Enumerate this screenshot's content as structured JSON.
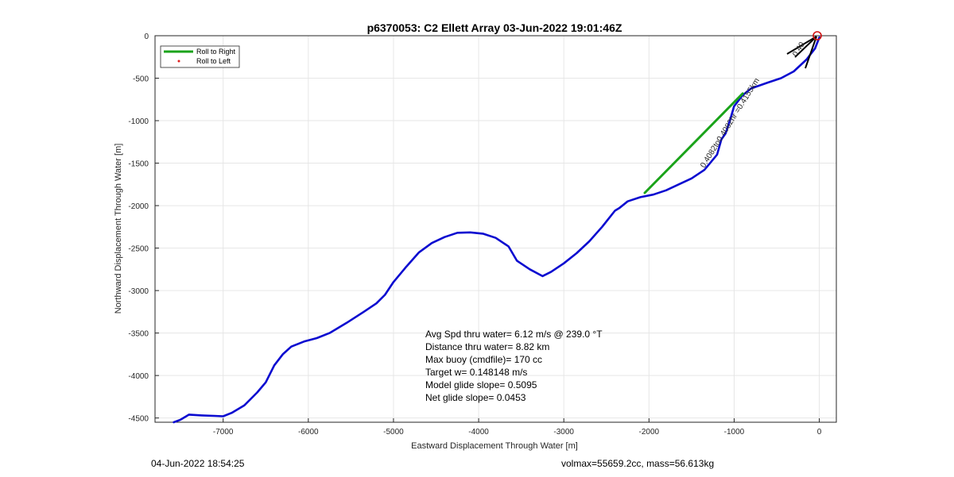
{
  "chart_data": {
    "type": "line",
    "title": "p6370053: C2 Ellett Array 03-Jun-2022 19:01:46Z",
    "xlabel": "Eastward Displacement Through Water [m]",
    "ylabel": "Northward Displacement Through Water [m]",
    "xlim": [
      -7800,
      200
    ],
    "ylim": [
      -4550,
      0
    ],
    "xticks": [
      -7000,
      -6000,
      -5000,
      -4000,
      -3000,
      -2000,
      -1000,
      0
    ],
    "yticks": [
      0,
      -500,
      -1000,
      -1500,
      -2000,
      -2500,
      -3000,
      -3500,
      -4000,
      -4500
    ],
    "grid": true,
    "legend": {
      "location": "top-left",
      "entries": [
        {
          "label": "Roll to Right",
          "color": "#1aa31a",
          "style": "line"
        },
        {
          "label": "Roll to Left",
          "color": "#e02020",
          "style": "dot"
        }
      ]
    },
    "series": [
      {
        "color": "#0a0ad0",
        "x": [
          0,
          -50,
          -150,
          -300,
          -450,
          -600,
          -800,
          -900,
          -1000,
          -1050,
          -1100,
          -1150,
          -1200,
          -1350,
          -1500,
          -1650,
          -1800,
          -1950,
          -2100,
          -2250,
          -2350,
          -2400,
          -2550,
          -2700,
          -2850,
          -3000,
          -3150,
          -3250,
          -3400,
          -3550,
          -3650,
          -3800,
          -3950,
          -4100,
          -4250,
          -4400,
          -4550,
          -4700,
          -4850,
          -5000,
          -5100,
          -5200,
          -5350,
          -5550,
          -5750,
          -5900,
          -6050,
          -6200,
          -6300,
          -6400,
          -6500,
          -6600,
          -6750,
          -6900,
          -7000,
          -7100,
          -7250,
          -7400,
          -7500,
          -7580
        ],
        "y": [
          -20,
          -150,
          -280,
          -420,
          -500,
          -550,
          -620,
          -700,
          -830,
          -1000,
          -1150,
          -1220,
          -1400,
          -1580,
          -1680,
          -1750,
          -1820,
          -1870,
          -1900,
          -1950,
          -2030,
          -2060,
          -2250,
          -2420,
          -2560,
          -2680,
          -2780,
          -2830,
          -2750,
          -2650,
          -2480,
          -2380,
          -2330,
          -2315,
          -2320,
          -2370,
          -2440,
          -2550,
          -2720,
          -2900,
          -3050,
          -3150,
          -3250,
          -3380,
          -3500,
          -3560,
          -3600,
          -3660,
          -3750,
          -3880,
          -4080,
          -4200,
          -4350,
          -4440,
          -4480,
          -4475,
          -4470,
          -4460,
          -4520,
          -4550
        ]
      },
      {
        "name": "Roll to Right",
        "color": "#1aa31a",
        "x": [
          -2050,
          -900
        ],
        "y": [
          -1850,
          -680
        ]
      }
    ],
    "annotations": {
      "stats": [
        "Avg Spd thru water=  6.12 m/s @ 239.0 °T",
        "Distance thru water=  8.82 km",
        "Max buoy (cmdfile)= 170 cc",
        "Target w= 0.148148 m/s",
        "Model glide slope= 0.5095",
        "Net glide slope= 0.0453"
      ],
      "segment_label": "0.4082to0.4082hr =0.4155km",
      "segment_label_small": "0.40"
    }
  },
  "footer": {
    "left": "04-Jun-2022 18:54:25",
    "right": "volmax=55659.2cc, mass=56.613kg"
  }
}
